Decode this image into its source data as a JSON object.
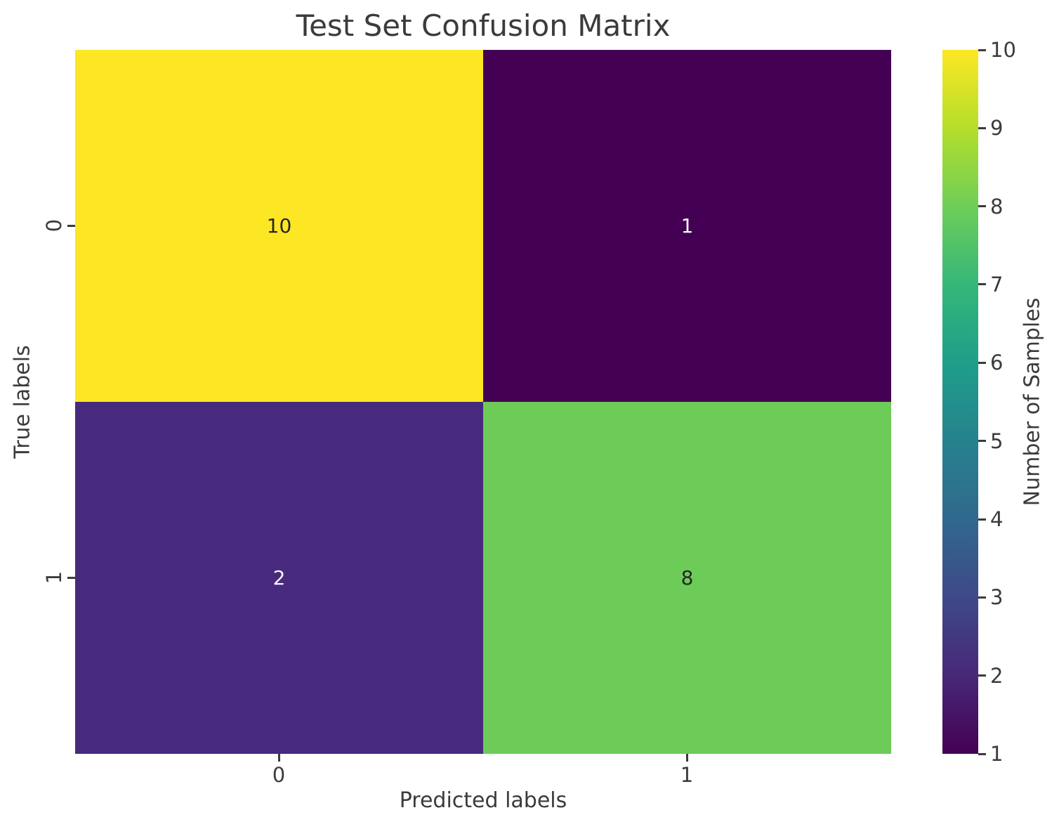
{
  "title": "Test Set Confusion Matrix",
  "axes": {
    "xlabel": "Predicted labels",
    "ylabel": "True labels",
    "xticklabels": [
      "0",
      "1"
    ],
    "yticklabels": [
      "0",
      "1"
    ]
  },
  "colorbar": {
    "label": "Number of Samples",
    "min": 1,
    "max": 10,
    "ticks_top_to_bottom": [
      "10",
      "9",
      "8",
      "7",
      "6",
      "5",
      "4",
      "3",
      "2",
      "1"
    ],
    "gradient_stops_bottom_to_top": [
      "#440154",
      "#482878",
      "#3e4989",
      "#31688e",
      "#26828e",
      "#1f9e89",
      "#35b779",
      "#6ece58",
      "#b5de2b",
      "#fde725"
    ]
  },
  "chart_data": {
    "type": "heatmap",
    "title": "Test Set Confusion Matrix",
    "xlabel": "Predicted labels",
    "ylabel": "True labels",
    "x_categories": [
      "0",
      "1"
    ],
    "y_categories": [
      "0",
      "1"
    ],
    "matrix": [
      [
        10,
        1
      ],
      [
        2,
        8
      ]
    ],
    "colormap": "viridis",
    "vmin": 1,
    "vmax": 10,
    "colorbar_label": "Number of Samples",
    "grid": false,
    "legend_position": "right-colorbar",
    "cells": [
      {
        "true_label": "0",
        "predicted_label": "0",
        "value": "10",
        "color": "#fde725",
        "text_color": "#262626"
      },
      {
        "true_label": "0",
        "predicted_label": "1",
        "value": "1",
        "color": "#440154",
        "text_color": "#f7f7f7"
      },
      {
        "true_label": "1",
        "predicted_label": "0",
        "value": "2",
        "color": "#472a7d",
        "text_color": "#f7f7f7"
      },
      {
        "true_label": "1",
        "predicted_label": "1",
        "value": "8",
        "color": "#6dcc57",
        "text_color": "#262626"
      }
    ]
  },
  "colors": {
    "text": "#3b3b3b",
    "background": "#ffffff"
  }
}
